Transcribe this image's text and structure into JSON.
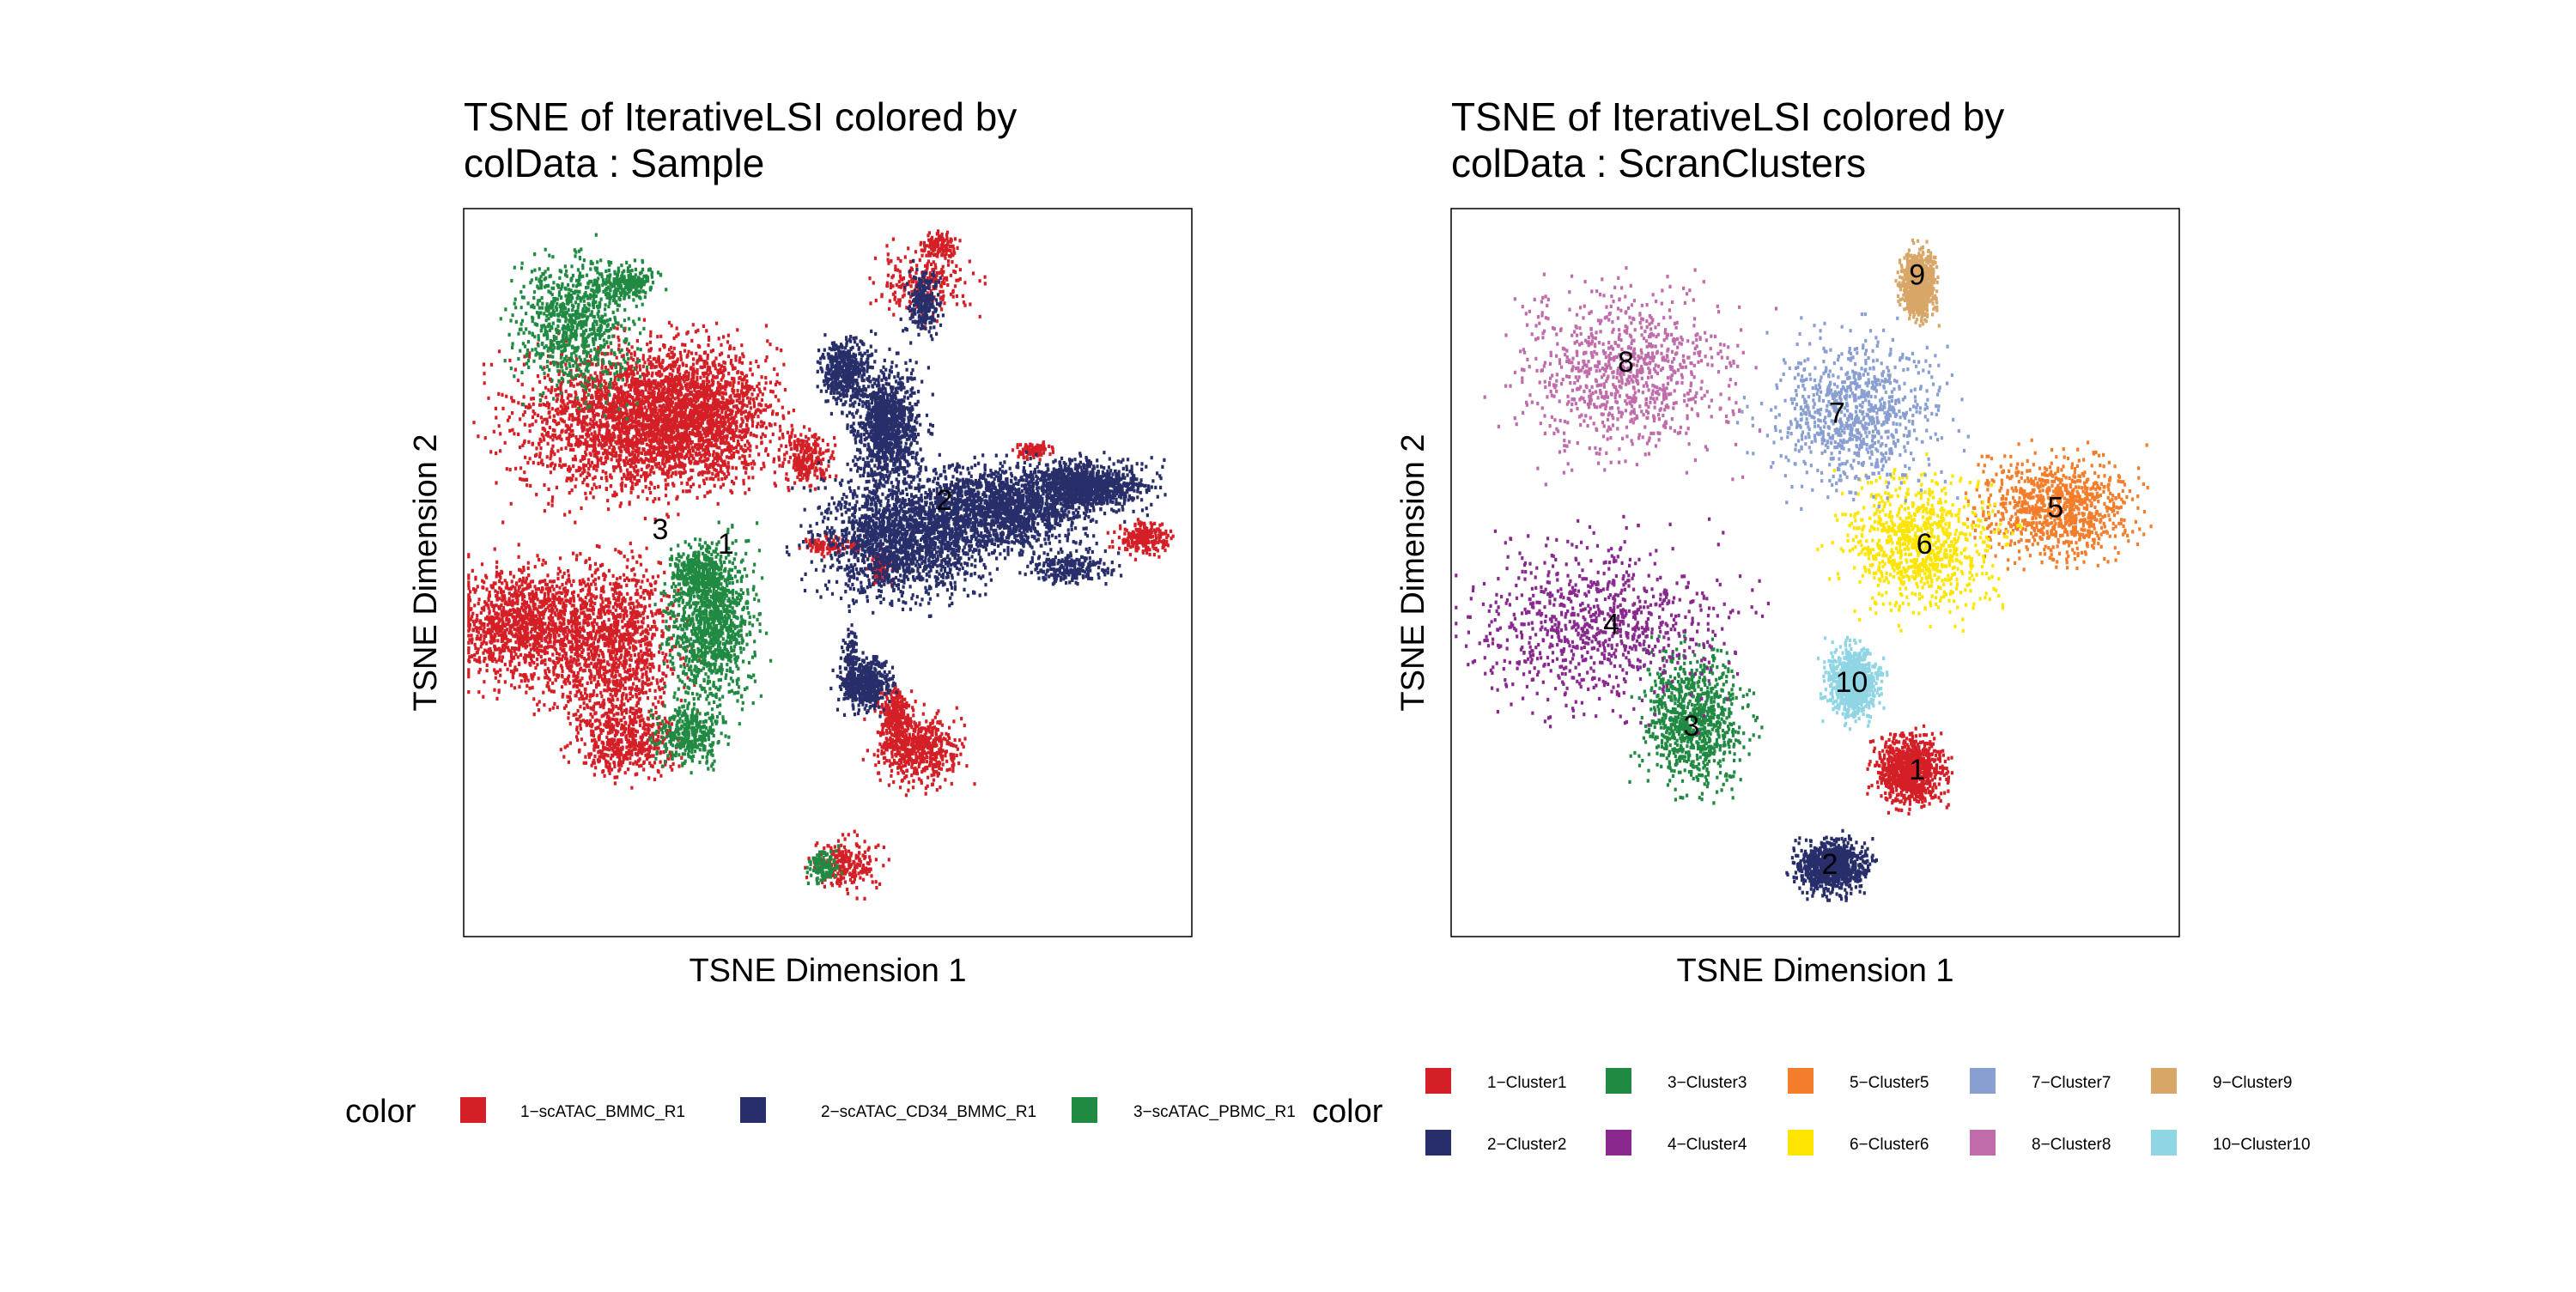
{
  "chart_data": [
    {
      "type": "scatter",
      "title": "TSNE of IterativeLSI  colored by\ncolData :  Sample",
      "title_lines": [
        "TSNE of IterativeLSI  colored by",
        "colData :  Sample"
      ],
      "xlabel": "TSNE Dimension 1",
      "ylabel": "TSNE Dimension 2",
      "xlim": [
        0,
        100
      ],
      "ylim": [
        0,
        100
      ],
      "grid": false,
      "legend_title": "color",
      "legend_placement": "bottom",
      "series": [
        {
          "name": "1−scATAC_BMMC_R1",
          "color": "#D51F26",
          "legend_label": "1−scATAC_BMMC_R1",
          "blobs": [
            [
              22,
              71,
              13,
              9,
              0.17
            ],
            [
              32,
              72,
              9,
              8,
              0.14
            ],
            [
              47,
              66,
              3,
              3,
              0.02
            ],
            [
              63,
              90,
              6,
              4,
              0.02
            ],
            [
              65,
              95,
              2,
              1.5,
              0.01
            ],
            [
              8,
              43,
              8,
              7,
              0.1
            ],
            [
              20,
              40,
              8,
              10,
              0.11
            ],
            [
              22,
              27,
              6,
              4,
              0.04
            ],
            [
              50,
              54,
              3,
              1,
              0.01
            ],
            [
              57,
              51,
              1.5,
              2,
              0.01
            ],
            [
              62,
              26,
              5,
              4,
              0.05
            ],
            [
              59,
              31,
              2,
              3,
              0.02
            ],
            [
              52,
              10,
              4,
              3,
              0.02
            ],
            [
              93,
              55,
              3,
              2,
              0.02
            ],
            [
              78,
              67,
              2,
              1,
              0.01
            ]
          ]
        },
        {
          "name": "2−scATAC_CD34_BMMC_R1",
          "color": "#272E6A",
          "legend_label": "2−scATAC_CD34_BMMC_R1",
          "blobs": [
            [
              52,
              78,
              3,
              4,
              0.04
            ],
            [
              58,
              70,
              4,
              7,
              0.09
            ],
            [
              60,
              55,
              10,
              7,
              0.15
            ],
            [
              73,
              59,
              10,
              5,
              0.13
            ],
            [
              85,
              62,
              7,
              3,
              0.09
            ],
            [
              63,
              87,
              2,
              4,
              0.02
            ],
            [
              55,
              35,
              3,
              3,
              0.04
            ],
            [
              53,
              38,
              1,
              4,
              0.01
            ],
            [
              83,
              51,
              5,
              2,
              0.02
            ]
          ]
        },
        {
          "name": "3−scATAC_PBMC_R1",
          "color": "#208A42",
          "legend_label": "3−scATAC_PBMC_R1",
          "blobs": [
            [
              15,
              84,
              7,
              8,
              0.07
            ],
            [
              22,
              90,
              4,
              2,
              0.02
            ],
            [
              34,
              43,
              5,
              9,
              0.09
            ],
            [
              31,
              28,
              4,
              4,
              0.03
            ],
            [
              32,
              50,
              3,
              3,
              0.03
            ],
            [
              49,
              10,
              2,
              2,
              0.01
            ]
          ]
        }
      ],
      "annotations": [
        {
          "text": "2",
          "x": 66,
          "y": 60
        },
        {
          "text": "3",
          "x": 27,
          "y": 56
        },
        {
          "text": "1",
          "x": 36,
          "y": 54
        }
      ]
    },
    {
      "type": "scatter",
      "title": "TSNE of IterativeLSI  colored by\ncolData :  ScranClusters",
      "title_lines": [
        "TSNE of IterativeLSI  colored by",
        "colData :  ScranClusters"
      ],
      "xlabel": "TSNE Dimension 1",
      "ylabel": "TSNE Dimension 2",
      "xlim": [
        0,
        100
      ],
      "ylim": [
        0,
        100
      ],
      "grid": false,
      "legend_title": "color",
      "legend_placement": "bottom",
      "series": [
        {
          "name": "1−Cluster1",
          "color": "#D51F26",
          "legend_label": "1−Cluster1",
          "blobs": [
            [
              63,
              23,
              4,
              4,
              1
            ]
          ]
        },
        {
          "name": "2−Cluster2",
          "color": "#272E6A",
          "legend_label": "2−Cluster2",
          "blobs": [
            [
              52,
              10,
              4,
              3,
              1
            ]
          ]
        },
        {
          "name": "3−Cluster3",
          "color": "#208A42",
          "legend_label": "3−Cluster3",
          "blobs": [
            [
              33,
              30,
              6,
              8,
              1
            ]
          ]
        },
        {
          "name": "4−Cluster4",
          "color": "#89288F",
          "legend_label": "4−Cluster4",
          "blobs": [
            [
              20,
              43,
              15,
              10,
              1
            ]
          ]
        },
        {
          "name": "5−Cluster5",
          "color": "#F47D2B",
          "legend_label": "5−Cluster5",
          "blobs": [
            [
              83,
              59,
              9,
              6,
              1
            ]
          ]
        },
        {
          "name": "6−Cluster6",
          "color": "#FEE500",
          "legend_label": "6−Cluster6",
          "blobs": [
            [
              64,
              54,
              9,
              8,
              1
            ]
          ]
        },
        {
          "name": "7−Cluster7",
          "color": "#8A9FD1",
          "legend_label": "7−Cluster7",
          "blobs": [
            [
              55,
              72,
              10,
              9,
              1
            ]
          ]
        },
        {
          "name": "8−Cluster8",
          "color": "#C06CAB",
          "legend_label": "8−Cluster8",
          "blobs": [
            [
              24,
              78,
              13,
              10,
              1
            ]
          ]
        },
        {
          "name": "9−Cluster9",
          "color": "#D8A767",
          "legend_label": "9−Cluster9",
          "blobs": [
            [
              64,
              90,
              2,
              4,
              1
            ]
          ]
        },
        {
          "name": "10−Cluster10",
          "color": "#90D5E4",
          "legend_label": "10−Cluster10",
          "blobs": [
            [
              55,
              35,
              3,
              4,
              1
            ]
          ]
        }
      ],
      "annotations": [
        {
          "text": "9",
          "x": 64,
          "y": 91
        },
        {
          "text": "8",
          "x": 24,
          "y": 79
        },
        {
          "text": "7",
          "x": 53,
          "y": 72
        },
        {
          "text": "5",
          "x": 83,
          "y": 59
        },
        {
          "text": "6",
          "x": 65,
          "y": 54
        },
        {
          "text": "4",
          "x": 22,
          "y": 43
        },
        {
          "text": "10",
          "x": 55,
          "y": 35
        },
        {
          "text": "3",
          "x": 33,
          "y": 29
        },
        {
          "text": "1",
          "x": 64,
          "y": 23
        },
        {
          "text": "2",
          "x": 52,
          "y": 10
        }
      ]
    }
  ]
}
